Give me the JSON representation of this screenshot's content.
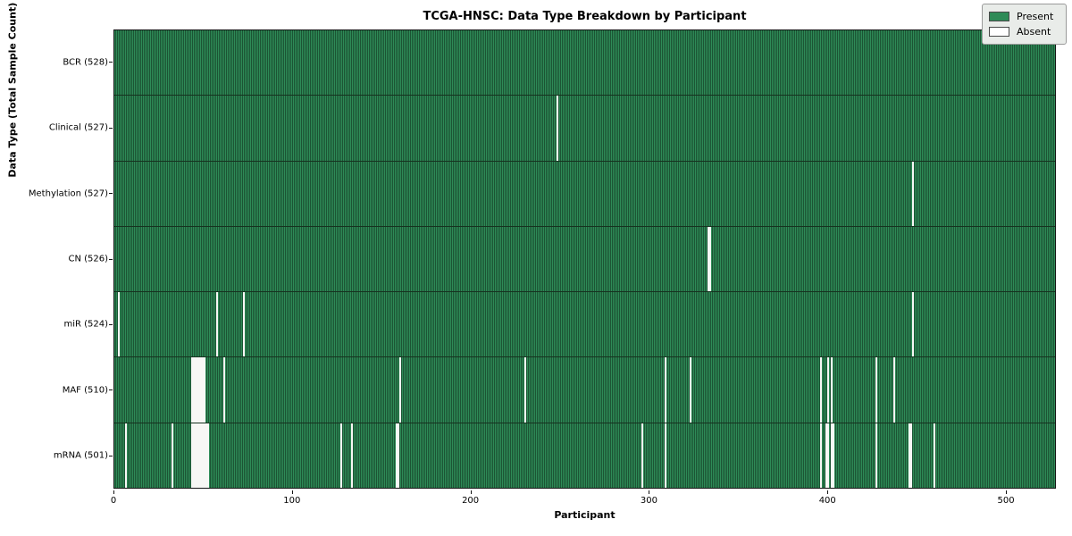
{
  "title": "TCGA-HNSC: Data Type Breakdown by Participant",
  "axes": {
    "xlabel": "Participant",
    "ylabel": "Data Type (Total Sample Count)"
  },
  "legend": {
    "present_label": "Present",
    "absent_label": "Absent"
  },
  "colors": {
    "present": "#2e8b57",
    "present_edge": "#1c5434",
    "absent": "#f7f7f5",
    "legend_bg": "#e9ece9"
  },
  "chart_data": {
    "type": "heatmap",
    "title": "TCGA-HNSC: Data Type Breakdown by Participant",
    "xlabel": "Participant",
    "ylabel": "Data Type (Total Sample Count)",
    "legend_entries": [
      "Present",
      "Absent"
    ],
    "legend_position": "upper right",
    "participants": 528,
    "x_range": [
      0,
      528
    ],
    "x_ticks": [
      0,
      100,
      200,
      300,
      400,
      500
    ],
    "grid": false,
    "rows": [
      {
        "data_type": "BCR",
        "label": "BCR (528)",
        "present_count": 528,
        "absent_participants": []
      },
      {
        "data_type": "Clinical",
        "label": "Clinical (527)",
        "present_count": 527,
        "absent_participants": [
          248
        ]
      },
      {
        "data_type": "Methylation",
        "label": "Methylation (527)",
        "present_count": 527,
        "absent_participants": [
          448
        ]
      },
      {
        "data_type": "CN",
        "label": "CN (526)",
        "present_count": 526,
        "absent_participants": [
          333,
          334
        ]
      },
      {
        "data_type": "miR",
        "label": "miR (524)",
        "present_count": 524,
        "absent_participants": [
          2,
          57,
          72,
          448
        ]
      },
      {
        "data_type": "MAF",
        "label": "MAF (510)",
        "present_count": 510,
        "absent_participants": [
          43,
          44,
          45,
          46,
          47,
          48,
          49,
          50,
          61,
          160,
          230,
          309,
          323,
          396,
          400,
          402,
          427,
          437
        ]
      },
      {
        "data_type": "mRNA",
        "label": "mRNA (501)",
        "present_count": 501,
        "absent_participants": [
          6,
          32,
          43,
          44,
          45,
          46,
          47,
          48,
          49,
          50,
          51,
          52,
          127,
          133,
          158,
          159,
          296,
          309,
          396,
          399,
          400,
          402,
          403,
          427,
          446,
          447,
          460
        ]
      }
    ]
  }
}
